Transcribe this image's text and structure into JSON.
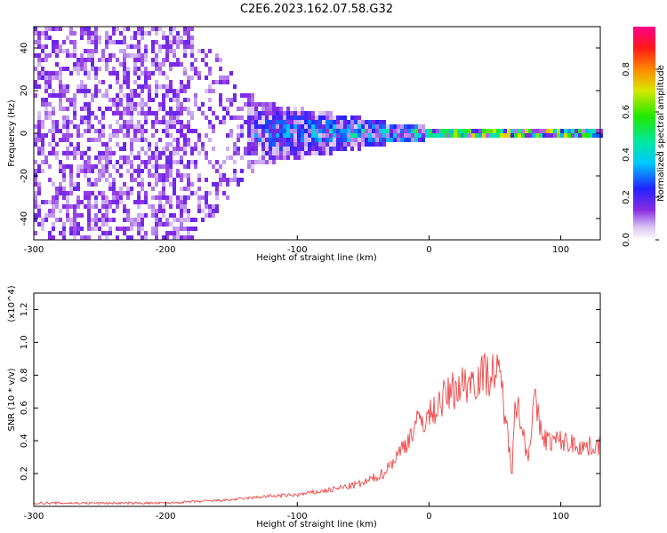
{
  "title": "C2E6.2023.162.07.58.G32",
  "chart_data": [
    {
      "type": "heatmap",
      "xlabel": "Height of straight line (km)",
      "ylabel": "Frequency (Hz)",
      "xlim": [
        -300,
        130
      ],
      "ylim": [
        -50,
        50
      ],
      "x_ticks": [
        -300,
        -200,
        -100,
        0,
        100
      ],
      "y_ticks": [
        -40,
        -20,
        0,
        20,
        40
      ],
      "colorbar": {
        "label": "Normalized spectral amplitude",
        "range": [
          0.0,
          1.0
        ],
        "ticks": [
          "0.0",
          "0.2",
          "0.4",
          "0.6",
          "0.8"
        ],
        "colormap": "rainbow (white, violet, blue, cyan, green, yellow, red, pink)"
      },
      "description_points": [
        {
          "x": -300,
          "spread_hz": 50,
          "amplitude": 0.12
        },
        {
          "x": -180,
          "spread_hz": 50,
          "amplitude": 0.1
        },
        {
          "x": -130,
          "spread_hz": 15,
          "amplitude": 0.3
        },
        {
          "x": -80,
          "spread_hz": 10,
          "amplitude": 0.4
        },
        {
          "x": -30,
          "spread_hz": 5,
          "amplitude": 0.5
        },
        {
          "x": 0,
          "spread_hz": 3,
          "amplitude": 0.7
        },
        {
          "x": 50,
          "spread_hz": 3,
          "amplitude": 0.8
        },
        {
          "x": 100,
          "spread_hz": 3,
          "amplitude": 0.85
        },
        {
          "x": 130,
          "spread_hz": 3,
          "amplitude": 0.5
        }
      ]
    },
    {
      "type": "line",
      "xlabel": "Height of straight line (km)",
      "ylabel": "SNR (10 * v/v)",
      "y_multiplier": "(x10^4)",
      "xlim": [
        -300,
        130
      ],
      "ylim": [
        0,
        1.3
      ],
      "x_ticks": [
        -300,
        -200,
        -100,
        0,
        100
      ],
      "y_ticks": [
        0.2,
        0.4,
        0.6,
        0.8,
        1.0,
        1.2
      ],
      "color": "#ee3333",
      "series": [
        {
          "x": [
            -300,
            -250,
            -200,
            -175,
            -150,
            -125,
            -100,
            -75,
            -50,
            -35,
            -25,
            -15,
            -10,
            0,
            10,
            20,
            30,
            40,
            50,
            55,
            60,
            63,
            65,
            70,
            75,
            80,
            85,
            90,
            100,
            110,
            120,
            130
          ],
          "y": [
            0.02,
            0.02,
            0.02,
            0.03,
            0.04,
            0.06,
            0.07,
            0.1,
            0.14,
            0.2,
            0.3,
            0.42,
            0.5,
            0.55,
            0.65,
            0.72,
            0.76,
            0.8,
            0.82,
            0.75,
            0.4,
            0.2,
            0.7,
            0.5,
            0.3,
            0.65,
            0.45,
            0.4,
            0.4,
            0.38,
            0.36,
            0.38
          ]
        }
      ]
    }
  ]
}
